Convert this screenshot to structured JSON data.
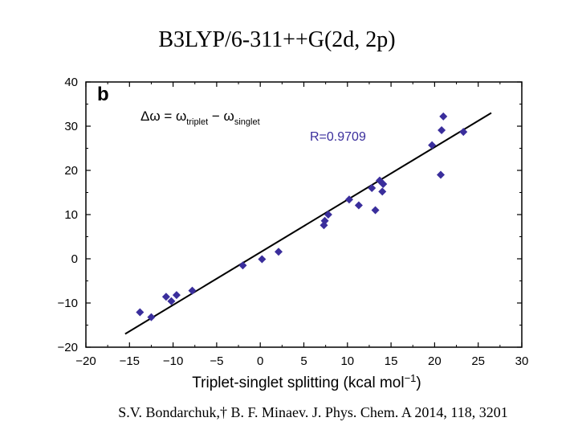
{
  "slide": {
    "title": "B3LYP/6-311++G(2d, 2p)",
    "citation": "S.V. Bondarchuk,† B. F. Minaev. J. Phys. Chem. A 2014, 118, 3201"
  },
  "chart_data": {
    "type": "scatter",
    "panel_label": "b",
    "xlabel": "Triplet-singlet splitting (kcal mol",
    "xlabel_sup": "−1",
    "xlabel_end": ")",
    "ylabel": "",
    "xlim": [
      -20,
      30
    ],
    "ylim": [
      -20,
      40
    ],
    "x_ticks": [
      -20,
      -15,
      -10,
      -5,
      0,
      5,
      10,
      15,
      20,
      25,
      30
    ],
    "x_tick_labels": [
      "−20",
      "−15",
      "−10",
      "−5",
      "0",
      "5",
      "10",
      "15",
      "20",
      "25",
      "30"
    ],
    "y_ticks": [
      -20,
      -10,
      0,
      10,
      20,
      30,
      40
    ],
    "y_tick_labels": [
      "−20",
      "−10",
      "0",
      "10",
      "20",
      "30",
      "40"
    ],
    "annotation": {
      "prefix": "Δω = ω",
      "sub1": "triplet",
      "middle": " − ω",
      "sub2": "singlet"
    },
    "r_label": "R=0.9709",
    "grid": false,
    "marker_color": "#3a2e9c",
    "r_label_color": "#3a2e9c",
    "fit_line": {
      "x": [
        -15.5,
        26.5
      ],
      "y": [
        -17,
        33
      ]
    },
    "points": [
      {
        "x": -13.8,
        "y": -12.1
      },
      {
        "x": -12.5,
        "y": -13.2
      },
      {
        "x": -10.8,
        "y": -8.6
      },
      {
        "x": -10.2,
        "y": -9.6
      },
      {
        "x": -9.6,
        "y": -8.2
      },
      {
        "x": -7.8,
        "y": -7.2
      },
      {
        "x": -2.0,
        "y": -1.5
      },
      {
        "x": 0.2,
        "y": -0.1
      },
      {
        "x": 2.1,
        "y": 1.6
      },
      {
        "x": 7.3,
        "y": 7.6
      },
      {
        "x": 7.4,
        "y": 8.6
      },
      {
        "x": 7.8,
        "y": 10.0
      },
      {
        "x": 10.2,
        "y": 13.4
      },
      {
        "x": 11.3,
        "y": 12.1
      },
      {
        "x": 12.8,
        "y": 16.0
      },
      {
        "x": 13.2,
        "y": 11.0
      },
      {
        "x": 13.7,
        "y": 17.7
      },
      {
        "x": 14.0,
        "y": 15.2
      },
      {
        "x": 14.1,
        "y": 16.9
      },
      {
        "x": 19.7,
        "y": 25.7
      },
      {
        "x": 20.7,
        "y": 19.0
      },
      {
        "x": 20.8,
        "y": 29.1
      },
      {
        "x": 21.0,
        "y": 32.2
      },
      {
        "x": 23.3,
        "y": 28.7
      }
    ]
  }
}
